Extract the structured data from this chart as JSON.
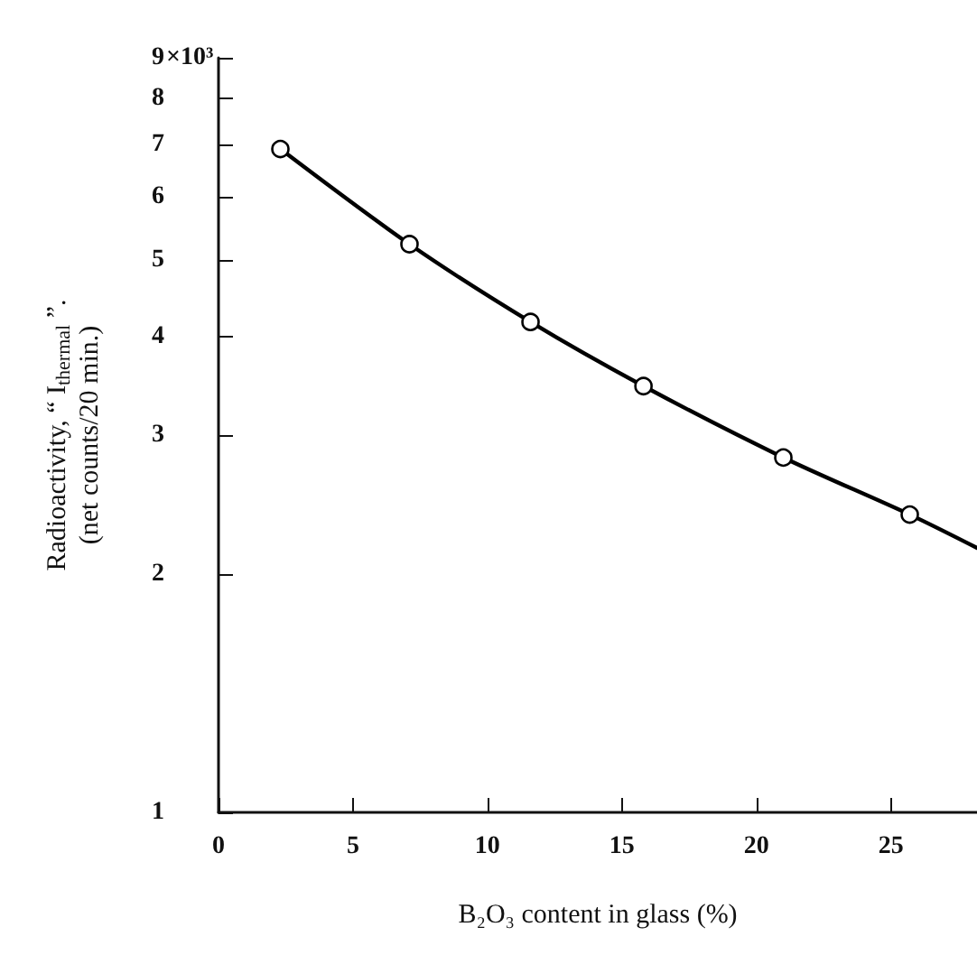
{
  "chart_data": {
    "type": "scatter",
    "xlabel": "B₂O₃ content in glass (%)",
    "ylabel": "Radioactivity, “ I$_{thermal}$ ”.\n(net counts/20 min.)",
    "log": "y",
    "grid": false,
    "marker": "circle",
    "xlim": [
      0,
      28.2
    ],
    "xticks": [
      0,
      5,
      10,
      15,
      20,
      25
    ],
    "ylim": [
      1,
      9
    ],
    "yticks": [
      1,
      2,
      3,
      4,
      5,
      6,
      7,
      8,
      9
    ],
    "annotations": [
      "×10³"
    ],
    "series": [
      {
        "color": "#000000",
        "x": [
          2.3,
          7.1,
          11.6,
          15.8,
          21.0,
          25.7
        ],
        "values": [
          6.9,
          5.23,
          4.17,
          3.46,
          2.81,
          2.38
        ]
      },
      {
        "type": "line",
        "color": "#000000",
        "marker": "none",
        "line_style": "solid",
        "x": [
          2.3,
          7.1,
          11.6,
          15.8,
          21.0,
          25.7,
          28.2
        ],
        "values": [
          6.9,
          5.23,
          4.17,
          3.46,
          2.81,
          2.38,
          2.16
        ]
      }
    ]
  }
}
